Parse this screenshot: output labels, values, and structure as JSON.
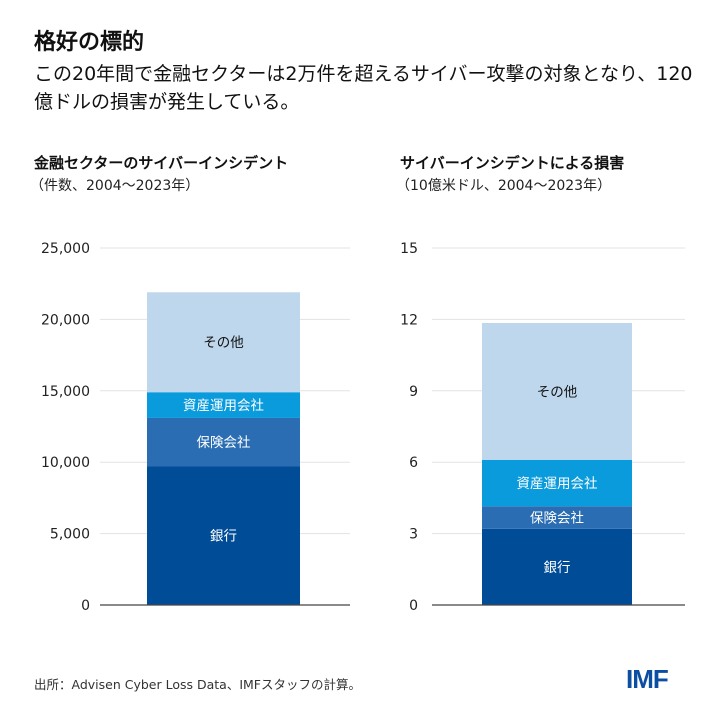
{
  "title": "格好の標的",
  "subtitle": "この20年間で金融セクターは2万件を超えるサイバー攻撃の対象となり、120億ドルの損害が発生している。",
  "source": "出所：Advisen Cyber Loss Data、IMFスタッフの計算。",
  "logo": "IMF",
  "colors": {
    "銀行": "#004c97",
    "保険会社": "#2a6db2",
    "資産運用会社": "#0a9bdc",
    "その他": "#bed7ec"
  },
  "chart_data": [
    {
      "type": "bar",
      "stacked": true,
      "title": "金融セクターのサイバーインシデント",
      "subtitle": "（件数、2004～2023年）",
      "ylim": [
        0,
        25000
      ],
      "yticks": [
        0,
        5000,
        10000,
        15000,
        20000,
        25000
      ],
      "ytick_labels": [
        "0",
        "5,000",
        "10,000",
        "15,000",
        "20,000",
        "25,000"
      ],
      "grid": true,
      "series": [
        {
          "name": "銀行",
          "value": 9700
        },
        {
          "name": "保険会社",
          "value": 3400
        },
        {
          "name": "資産運用会社",
          "value": 1800
        },
        {
          "name": "その他",
          "value": 7000
        }
      ]
    },
    {
      "type": "bar",
      "stacked": true,
      "title": "サイバーインシデントによる損害",
      "subtitle": "（10億米ドル、2004～2023年）",
      "ylim": [
        0,
        15
      ],
      "yticks": [
        0,
        3,
        6,
        9,
        12,
        15
      ],
      "ytick_labels": [
        "0",
        "3",
        "6",
        "9",
        "12",
        "15"
      ],
      "grid": true,
      "series": [
        {
          "name": "銀行",
          "value": 3.2
        },
        {
          "name": "保険会社",
          "value": 0.95
        },
        {
          "name": "資産運用会社",
          "value": 1.95
        },
        {
          "name": "その他",
          "value": 5.75
        }
      ]
    }
  ]
}
